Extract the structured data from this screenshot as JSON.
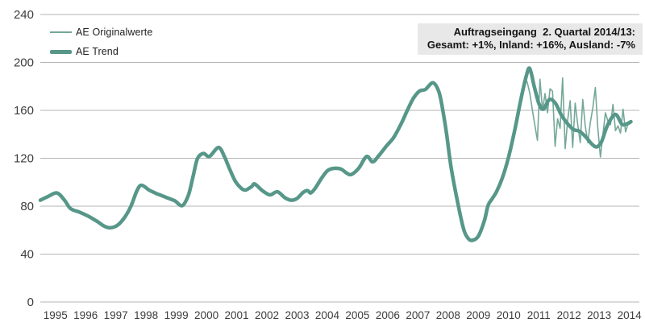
{
  "chart_data": {
    "type": "line",
    "title": "",
    "x_year_labels": [
      "1995",
      "1996",
      "1997",
      "1998",
      "1999",
      "2000",
      "2001",
      "2002",
      "2003",
      "2004",
      "2005",
      "2006",
      "2007",
      "2008",
      "2009",
      "2010",
      "2011",
      "2012",
      "2013",
      "2014"
    ],
    "x_domain": [
      1995,
      2014.83
    ],
    "ylim": [
      0,
      240
    ],
    "ytick_step": 40,
    "ytick_labels": [
      "0",
      "40",
      "80",
      "120",
      "160",
      "200",
      "240"
    ],
    "grid": "horizontal-only",
    "legend_position": "top-left-inside",
    "annotation": {
      "line1": "Auftragseingang  2. Quartal 2014/13:",
      "line2": "Gesamt: +1%, Inland: +16%, Ausland: -7%"
    },
    "series": [
      {
        "name": "AE Originalwerte",
        "style": "thin",
        "sampling": "monthly",
        "start_year": 2011,
        "values": [
          188,
          183,
          174,
          160,
          147,
          135,
          186,
          160,
          174,
          158,
          178,
          176,
          130,
          153,
          145,
          187,
          128,
          152,
          168,
          129,
          166,
          148,
          133,
          169,
          147,
          133,
          150,
          162,
          179,
          145,
          121,
          140,
          158,
          151,
          148,
          165,
          143,
          147,
          141,
          161,
          142,
          149
        ]
      },
      {
        "name": "AE Trend",
        "style": "thick",
        "sampling": "keypoints",
        "points": [
          [
            1995.0,
            85
          ],
          [
            1995.25,
            88
          ],
          [
            1995.55,
            91
          ],
          [
            1995.8,
            85
          ],
          [
            1996.0,
            78
          ],
          [
            1996.3,
            75
          ],
          [
            1996.6,
            71.5
          ],
          [
            1996.9,
            67
          ],
          [
            1997.1,
            63.5
          ],
          [
            1997.3,
            62
          ],
          [
            1997.55,
            64
          ],
          [
            1997.8,
            71
          ],
          [
            1998.0,
            80
          ],
          [
            1998.2,
            93
          ],
          [
            1998.35,
            97.5
          ],
          [
            1998.6,
            93.5
          ],
          [
            1998.8,
            91
          ],
          [
            1999.0,
            89
          ],
          [
            1999.2,
            87
          ],
          [
            1999.45,
            84.5
          ],
          [
            1999.7,
            80.5
          ],
          [
            1999.9,
            89
          ],
          [
            2000.05,
            104
          ],
          [
            2000.2,
            119.5
          ],
          [
            2000.4,
            124
          ],
          [
            2000.6,
            121.5
          ],
          [
            2000.9,
            129
          ],
          [
            2001.1,
            121
          ],
          [
            2001.25,
            112
          ],
          [
            2001.45,
            101
          ],
          [
            2001.65,
            95
          ],
          [
            2001.8,
            93.5
          ],
          [
            2002.0,
            96.5
          ],
          [
            2002.1,
            98.5
          ],
          [
            2002.35,
            93
          ],
          [
            2002.6,
            89.5
          ],
          [
            2002.85,
            92
          ],
          [
            2003.1,
            87
          ],
          [
            2003.3,
            85
          ],
          [
            2003.5,
            86.5
          ],
          [
            2003.7,
            91.5
          ],
          [
            2003.85,
            93
          ],
          [
            2003.95,
            91
          ],
          [
            2004.1,
            95
          ],
          [
            2004.3,
            103
          ],
          [
            2004.5,
            109.5
          ],
          [
            2004.7,
            111.5
          ],
          [
            2004.95,
            111
          ],
          [
            2005.15,
            107.5
          ],
          [
            2005.3,
            106.5
          ],
          [
            2005.55,
            112
          ],
          [
            2005.8,
            121.5
          ],
          [
            2006.0,
            117
          ],
          [
            2006.2,
            122
          ],
          [
            2006.45,
            130
          ],
          [
            2006.7,
            137.5
          ],
          [
            2006.95,
            149
          ],
          [
            2007.15,
            160
          ],
          [
            2007.35,
            170
          ],
          [
            2007.55,
            176
          ],
          [
            2007.75,
            177.5
          ],
          [
            2008.0,
            183
          ],
          [
            2008.2,
            175
          ],
          [
            2008.33,
            159
          ],
          [
            2008.45,
            140
          ],
          [
            2008.6,
            112
          ],
          [
            2008.8,
            85
          ],
          [
            2009.0,
            62
          ],
          [
            2009.15,
            53.5
          ],
          [
            2009.3,
            51.5
          ],
          [
            2009.5,
            55
          ],
          [
            2009.7,
            68
          ],
          [
            2009.82,
            80.5
          ],
          [
            2009.95,
            86
          ],
          [
            2010.1,
            92
          ],
          [
            2010.3,
            104
          ],
          [
            2010.5,
            121
          ],
          [
            2010.7,
            143
          ],
          [
            2010.9,
            168
          ],
          [
            2011.08,
            188
          ],
          [
            2011.2,
            195
          ],
          [
            2011.35,
            180
          ],
          [
            2011.5,
            166
          ],
          [
            2011.65,
            161
          ],
          [
            2011.85,
            169
          ],
          [
            2012.05,
            166
          ],
          [
            2012.25,
            156
          ],
          [
            2012.45,
            149
          ],
          [
            2012.65,
            144
          ],
          [
            2012.85,
            142.5
          ],
          [
            2013.05,
            138
          ],
          [
            2013.25,
            132
          ],
          [
            2013.42,
            129.5
          ],
          [
            2013.58,
            134
          ],
          [
            2013.75,
            146
          ],
          [
            2013.95,
            155
          ],
          [
            2014.08,
            156
          ],
          [
            2014.25,
            148.5
          ],
          [
            2014.4,
            148.5
          ],
          [
            2014.55,
            150.5
          ]
        ]
      }
    ],
    "colors": {
      "trend": "#569789",
      "original": "#74a899",
      "gridline": "#b5b5b5",
      "axis_text": "#3d3d3d",
      "annotation_bg": "#e8e8e8"
    }
  }
}
